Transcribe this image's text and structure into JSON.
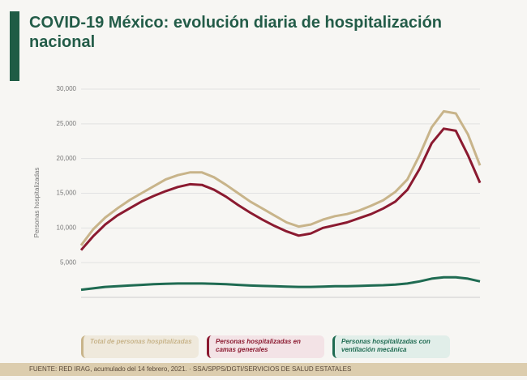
{
  "chart_data": {
    "type": "line",
    "title": "COVID-19 México: evolución diaria de hospitalización nacional",
    "y_label": "Personas hospitalizadas",
    "source": "FUENTE: RED IRAG, acumulado del 14 febrero, 2021. · SSA/SPPS/DGTI/SERVICIOS DE SALUD ESTATALES",
    "categories": [
      null,
      null,
      null,
      null,
      null,
      null,
      null,
      null,
      null,
      null,
      null,
      null,
      null,
      null,
      null,
      null,
      null,
      null,
      null,
      null,
      null,
      null,
      null,
      null,
      null,
      null,
      null,
      null,
      null,
      null,
      null,
      null,
      null,
      null
    ],
    "ylim": [
      0,
      30000
    ],
    "yticks": [
      {
        "value": 5000,
        "label": "5,000"
      },
      {
        "value": 10000,
        "label": "10,000"
      },
      {
        "value": 15000,
        "label": "15,000"
      },
      {
        "value": 20000,
        "label": "20,000"
      },
      {
        "value": 25000,
        "label": "25,000"
      },
      {
        "value": 30000,
        "label": "30,000"
      }
    ],
    "grid": true,
    "series": [
      {
        "name": "Total de personas hospitalizadas",
        "color": "#c8b48a",
        "values": [
          7500,
          9800,
          11500,
          12800,
          14000,
          15000,
          16000,
          17000,
          17600,
          18000,
          18000,
          17300,
          16200,
          15000,
          13800,
          12800,
          11800,
          10800,
          10200,
          10500,
          11200,
          11700,
          12000,
          12500,
          13200,
          14000,
          15200,
          17000,
          20500,
          24500,
          26800,
          26500,
          23500,
          19000
        ]
      },
      {
        "name": "Personas hospitalizadas en camas generales",
        "color": "#8b1a30",
        "values": [
          6800,
          8800,
          10500,
          11800,
          12800,
          13800,
          14600,
          15300,
          15900,
          16300,
          16200,
          15500,
          14500,
          13300,
          12200,
          11200,
          10300,
          9500,
          8900,
          9200,
          10000,
          10400,
          10800,
          11400,
          12000,
          12800,
          13800,
          15500,
          18500,
          22200,
          24300,
          24000,
          20500,
          16500
        ]
      },
      {
        "name": "Personas hospitalizadas con ventilación mecánica",
        "color": "#1f6b52",
        "values": [
          1100,
          1300,
          1500,
          1600,
          1700,
          1800,
          1900,
          1950,
          2000,
          2000,
          2000,
          1950,
          1900,
          1800,
          1700,
          1650,
          1600,
          1550,
          1500,
          1500,
          1550,
          1600,
          1600,
          1650,
          1700,
          1750,
          1850,
          2000,
          2300,
          2700,
          2900,
          2900,
          2700,
          2300
        ]
      }
    ]
  }
}
